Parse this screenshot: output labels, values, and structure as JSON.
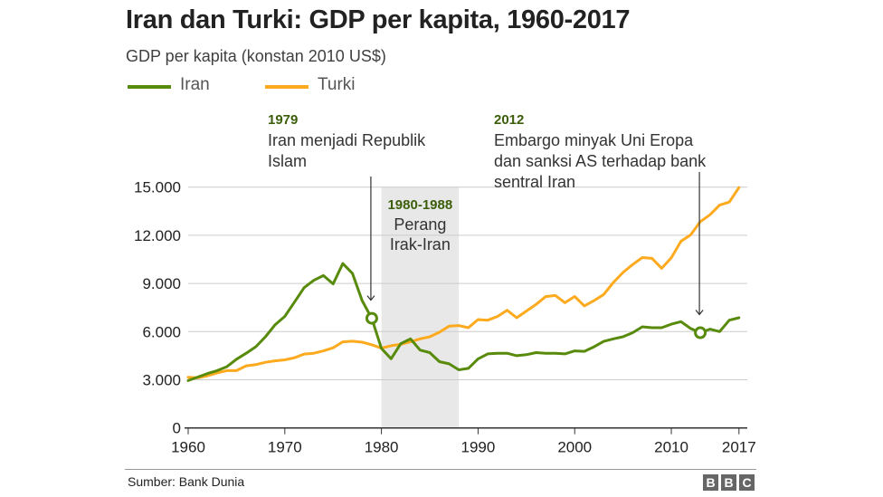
{
  "header": {
    "title": "Iran dan Turki: GDP per kapita, 1960-2017",
    "subtitle": "GDP per kapita (konstan 2010 US$)"
  },
  "footer": {
    "source": "Sumber: Bank Dunia",
    "logo_letters": [
      "B",
      "B",
      "C"
    ]
  },
  "chart_data": {
    "type": "line",
    "title": "Iran dan Turki: GDP per kapita, 1960-2017",
    "ylabel": "GDP per kapita (konstan 2010 US$)",
    "xlabel": "",
    "xlim": [
      1960,
      2017
    ],
    "ylim": [
      0,
      15000
    ],
    "x_ticks": [
      1960,
      1970,
      1980,
      1990,
      2000,
      2010,
      2017
    ],
    "x_tick_labels": [
      "1960",
      "1970",
      "1980",
      "1990",
      "2000",
      "2010",
      "2017"
    ],
    "y_ticks": [
      0,
      3000,
      6000,
      9000,
      12000,
      15000
    ],
    "y_tick_labels": [
      "0",
      "3.000",
      "6.000",
      "9.000",
      "12.000",
      "15.000"
    ],
    "grid": "horizontal",
    "legend_position": "top-left",
    "x": [
      1960,
      1961,
      1962,
      1963,
      1964,
      1965,
      1966,
      1967,
      1968,
      1969,
      1970,
      1971,
      1972,
      1973,
      1974,
      1975,
      1976,
      1977,
      1978,
      1979,
      1980,
      1981,
      1982,
      1983,
      1984,
      1985,
      1986,
      1987,
      1988,
      1989,
      1990,
      1991,
      1992,
      1993,
      1994,
      1995,
      1996,
      1997,
      1998,
      1999,
      2000,
      2001,
      2002,
      2003,
      2004,
      2005,
      2006,
      2007,
      2008,
      2009,
      2010,
      2011,
      2012,
      2013,
      2014,
      2015,
      2016,
      2017
    ],
    "series": [
      {
        "name": "Iran",
        "color": "#588a0b",
        "values": [
          2950,
          3170,
          3390,
          3570,
          3810,
          4280,
          4650,
          5060,
          5680,
          6430,
          6950,
          7840,
          8740,
          9190,
          9490,
          8970,
          10240,
          9620,
          7930,
          6830,
          4950,
          4310,
          5250,
          5550,
          4850,
          4690,
          4130,
          3990,
          3620,
          3710,
          4300,
          4610,
          4650,
          4650,
          4500,
          4560,
          4690,
          4650,
          4650,
          4610,
          4800,
          4770,
          5050,
          5390,
          5550,
          5680,
          5930,
          6300,
          6240,
          6240,
          6460,
          6620,
          6190,
          5930,
          6150,
          6000,
          6710,
          6860
        ]
      },
      {
        "name": "Turki",
        "color": "#fdaa1f",
        "values": [
          3160,
          3120,
          3250,
          3430,
          3570,
          3570,
          3870,
          3940,
          4090,
          4180,
          4240,
          4370,
          4600,
          4650,
          4800,
          4990,
          5360,
          5400,
          5340,
          5180,
          4970,
          5120,
          5210,
          5360,
          5550,
          5680,
          5960,
          6340,
          6380,
          6240,
          6750,
          6710,
          6940,
          7330,
          6860,
          7280,
          7690,
          8180,
          8250,
          7800,
          8190,
          7600,
          7930,
          8310,
          9060,
          9680,
          10180,
          10610,
          10560,
          9940,
          10600,
          11630,
          12030,
          12850,
          13280,
          13880,
          14070,
          14970
        ]
      }
    ],
    "shaded_regions": [
      {
        "from": 1980,
        "to": 1988,
        "label_year": "1980-1988",
        "label_lines": [
          "Perang",
          "Irak-Iran"
        ]
      }
    ],
    "annotations": [
      {
        "year_label": "1979",
        "lines": [
          "Iran menjadi Republik",
          "Islam"
        ],
        "marker_x": 1979,
        "marker_series": "Iran",
        "marker_value": 6830
      },
      {
        "year_label": "2012",
        "lines": [
          "Embargo minyak Uni Eropa",
          "dan sanksi AS terhadap bank",
          "sentral Iran"
        ],
        "marker_x": 2013,
        "marker_series": "Iran",
        "marker_value": 5930
      }
    ]
  }
}
